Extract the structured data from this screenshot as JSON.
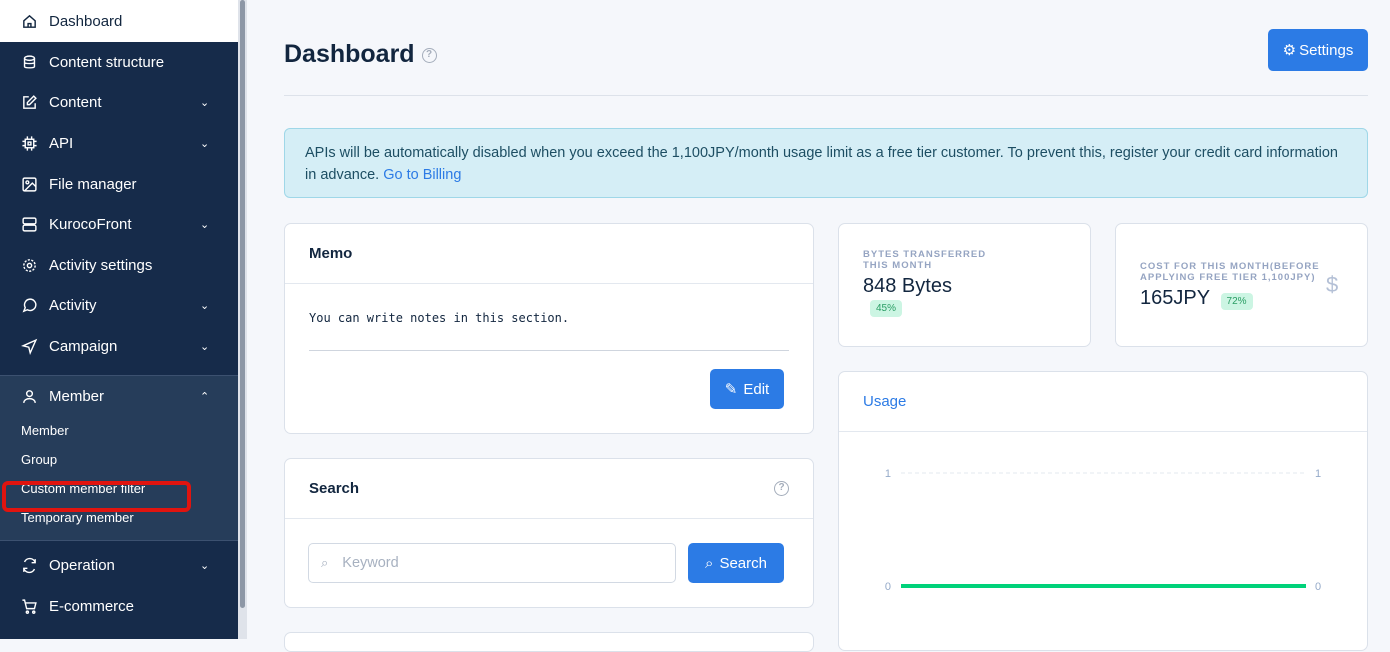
{
  "sidebar": {
    "items": [
      {
        "label": "Dashboard",
        "icon": "home-icon",
        "active": true
      },
      {
        "label": "Content structure",
        "icon": "database-icon"
      },
      {
        "label": "Content",
        "icon": "edit-icon",
        "expandable": true
      },
      {
        "label": "API",
        "icon": "chip-icon",
        "expandable": true
      },
      {
        "label": "File manager",
        "icon": "image-icon"
      },
      {
        "label": "KurocoFront",
        "icon": "server-icon",
        "expandable": true
      },
      {
        "label": "Activity settings",
        "icon": "gear-icon"
      },
      {
        "label": "Activity",
        "icon": "chat-icon",
        "expandable": true
      },
      {
        "label": "Campaign",
        "icon": "send-icon",
        "expandable": true
      }
    ],
    "member": {
      "label": "Member",
      "icon": "user-icon",
      "expanded": true,
      "subitems": [
        "Member",
        "Group",
        "Custom member filter",
        "Temporary member"
      ]
    },
    "after": [
      {
        "label": "Operation",
        "icon": "refresh-icon",
        "expandable": true
      },
      {
        "label": "E-commerce",
        "icon": "cart-icon"
      }
    ]
  },
  "header": {
    "title": "Dashboard",
    "settings_label": "Settings"
  },
  "alert": {
    "text": "APIs will be automatically disabled when you exceed the 1,100JPY/month usage limit as a free tier customer. To prevent this, register your credit card information in advance. ",
    "link": "Go to Billing"
  },
  "memo": {
    "title": "Memo",
    "text": "You can write notes in this section.",
    "edit_label": "Edit"
  },
  "search": {
    "title": "Search",
    "placeholder": "Keyword",
    "button": "Search"
  },
  "stats": [
    {
      "label1": "BYTES TRANSFERRED",
      "label2": "THIS MONTH",
      "value": "848 Bytes",
      "badge": "45%"
    },
    {
      "label1": "COST FOR THIS MONTH(BEFORE",
      "label2": "APPLYING FREE TIER 1,100JPY)",
      "value": "165JPY",
      "badge": "72%",
      "icon": "dollar-icon"
    }
  ],
  "usage": {
    "title": "Usage"
  },
  "chart_data": {
    "type": "line",
    "ylim": [
      0,
      1
    ],
    "y_ticks_left": [
      "1",
      "0"
    ],
    "y_ticks_right": [
      "1",
      "0"
    ],
    "series": [
      {
        "values": [
          0,
          0
        ],
        "color": "#00d27a"
      }
    ]
  }
}
